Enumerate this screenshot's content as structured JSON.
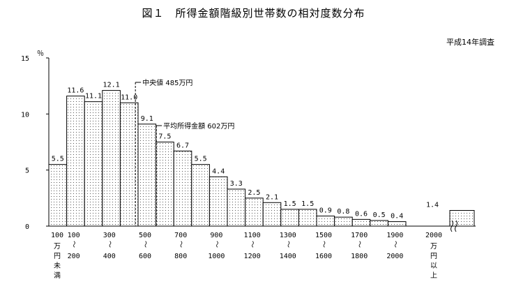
{
  "title": "図１　所得金額階級別世帯数の相対度数分布",
  "survey_note": "平成14年調査",
  "chart_data": {
    "type": "bar",
    "title": "図１　所得金額階級別世帯数の相対度数分布",
    "ylabel": "％",
    "ylim": [
      0,
      15
    ],
    "yticks": [
      "0",
      "5",
      "10",
      "15"
    ],
    "categories": [
      "100万円未満",
      "100～200",
      "200～300",
      "300～400",
      "400～500",
      "500～600",
      "600～700",
      "700～800",
      "800～900",
      "900～1000",
      "1000～1100",
      "1100～1200",
      "1200～1300",
      "1300～1400",
      "1400～1500",
      "1500～1600",
      "1600～1700",
      "1700～1800",
      "1800～1900",
      "1900～2000",
      "2000万円以上"
    ],
    "values": [
      5.5,
      11.6,
      11.1,
      12.1,
      11.0,
      9.1,
      7.5,
      6.7,
      5.5,
      4.4,
      3.3,
      2.5,
      2.1,
      1.5,
      1.5,
      0.9,
      0.8,
      0.6,
      0.5,
      0.4,
      1.4
    ],
    "value_labels": [
      "5.5",
      "11.6",
      "11.1",
      "12.1",
      "11.0",
      "9.1",
      "7.5",
      "6.7",
      "5.5",
      "4.4",
      "3.3",
      "2.5",
      "2.1",
      "1.5",
      "1.5",
      "0.9",
      "0.8",
      "0.6",
      "0.5",
      "0.4",
      "1.4"
    ],
    "x_axis_labels": [
      {
        "top": "100",
        "bottom": "万円未満",
        "boundary": 0
      },
      {
        "top": "100",
        "bottom": "200",
        "boundary": 1
      },
      {
        "top": "300",
        "bottom": "400",
        "boundary": 3
      },
      {
        "top": "500",
        "bottom": "600",
        "boundary": 5
      },
      {
        "top": "700",
        "bottom": "800",
        "boundary": 7
      },
      {
        "top": "900",
        "bottom": "1000",
        "boundary": 9
      },
      {
        "top": "1100",
        "bottom": "1200",
        "boundary": 11
      },
      {
        "top": "1300",
        "bottom": "1400",
        "boundary": 13
      },
      {
        "top": "1500",
        "bottom": "1600",
        "boundary": 15
      },
      {
        "top": "1700",
        "bottom": "1800",
        "boundary": 17
      },
      {
        "top": "1900",
        "bottom": "2000",
        "boundary": 19
      },
      {
        "top": "2000",
        "bottom": "万円以上",
        "boundary": 20
      }
    ],
    "annotations": [
      {
        "label": "中央値 485万円",
        "value": 485
      },
      {
        "label": "平均所得金額 602万円",
        "value": 602
      }
    ],
    "grid": false,
    "pattern": "dotted"
  }
}
